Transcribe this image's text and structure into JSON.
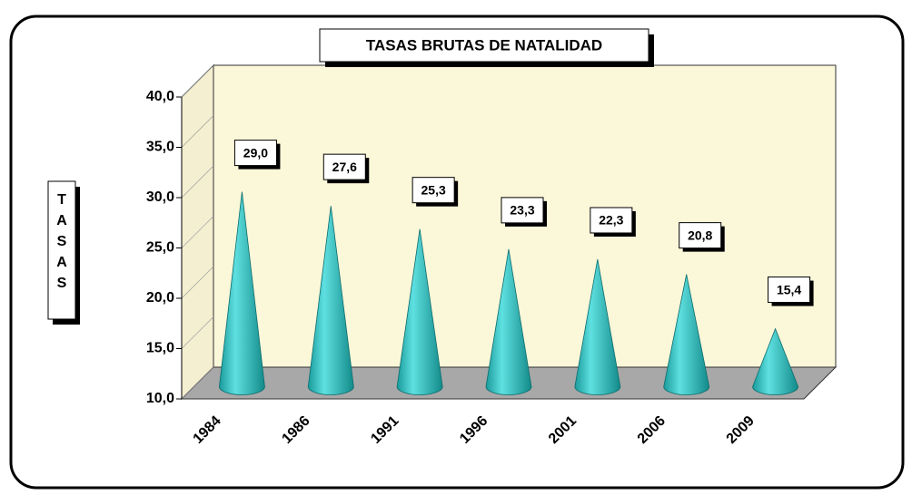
{
  "chart_data": {
    "type": "cone",
    "title": "TASAS BRUTAS DE NATALIDAD",
    "y_label": "TASAS",
    "categories": [
      "1984",
      "1986",
      "1991",
      "1996",
      "2001",
      "2006",
      "2009"
    ],
    "values": [
      29.0,
      27.6,
      25.3,
      23.3,
      22.3,
      20.8,
      15.4
    ],
    "value_labels": [
      "29,0",
      "27,6",
      "25,3",
      "23,3",
      "22,3",
      "20,8",
      "15,4"
    ],
    "color": "#30c4c4",
    "ylim": [
      10,
      40
    ],
    "yticks": [
      {
        "value": 10,
        "label": "10,0"
      },
      {
        "value": 15,
        "label": "15,0"
      },
      {
        "value": 20,
        "label": "20,0"
      },
      {
        "value": 25,
        "label": "25,0"
      },
      {
        "value": 30,
        "label": "30,0"
      },
      {
        "value": 35,
        "label": "35,0"
      },
      {
        "value": 40,
        "label": "40,0"
      }
    ]
  }
}
